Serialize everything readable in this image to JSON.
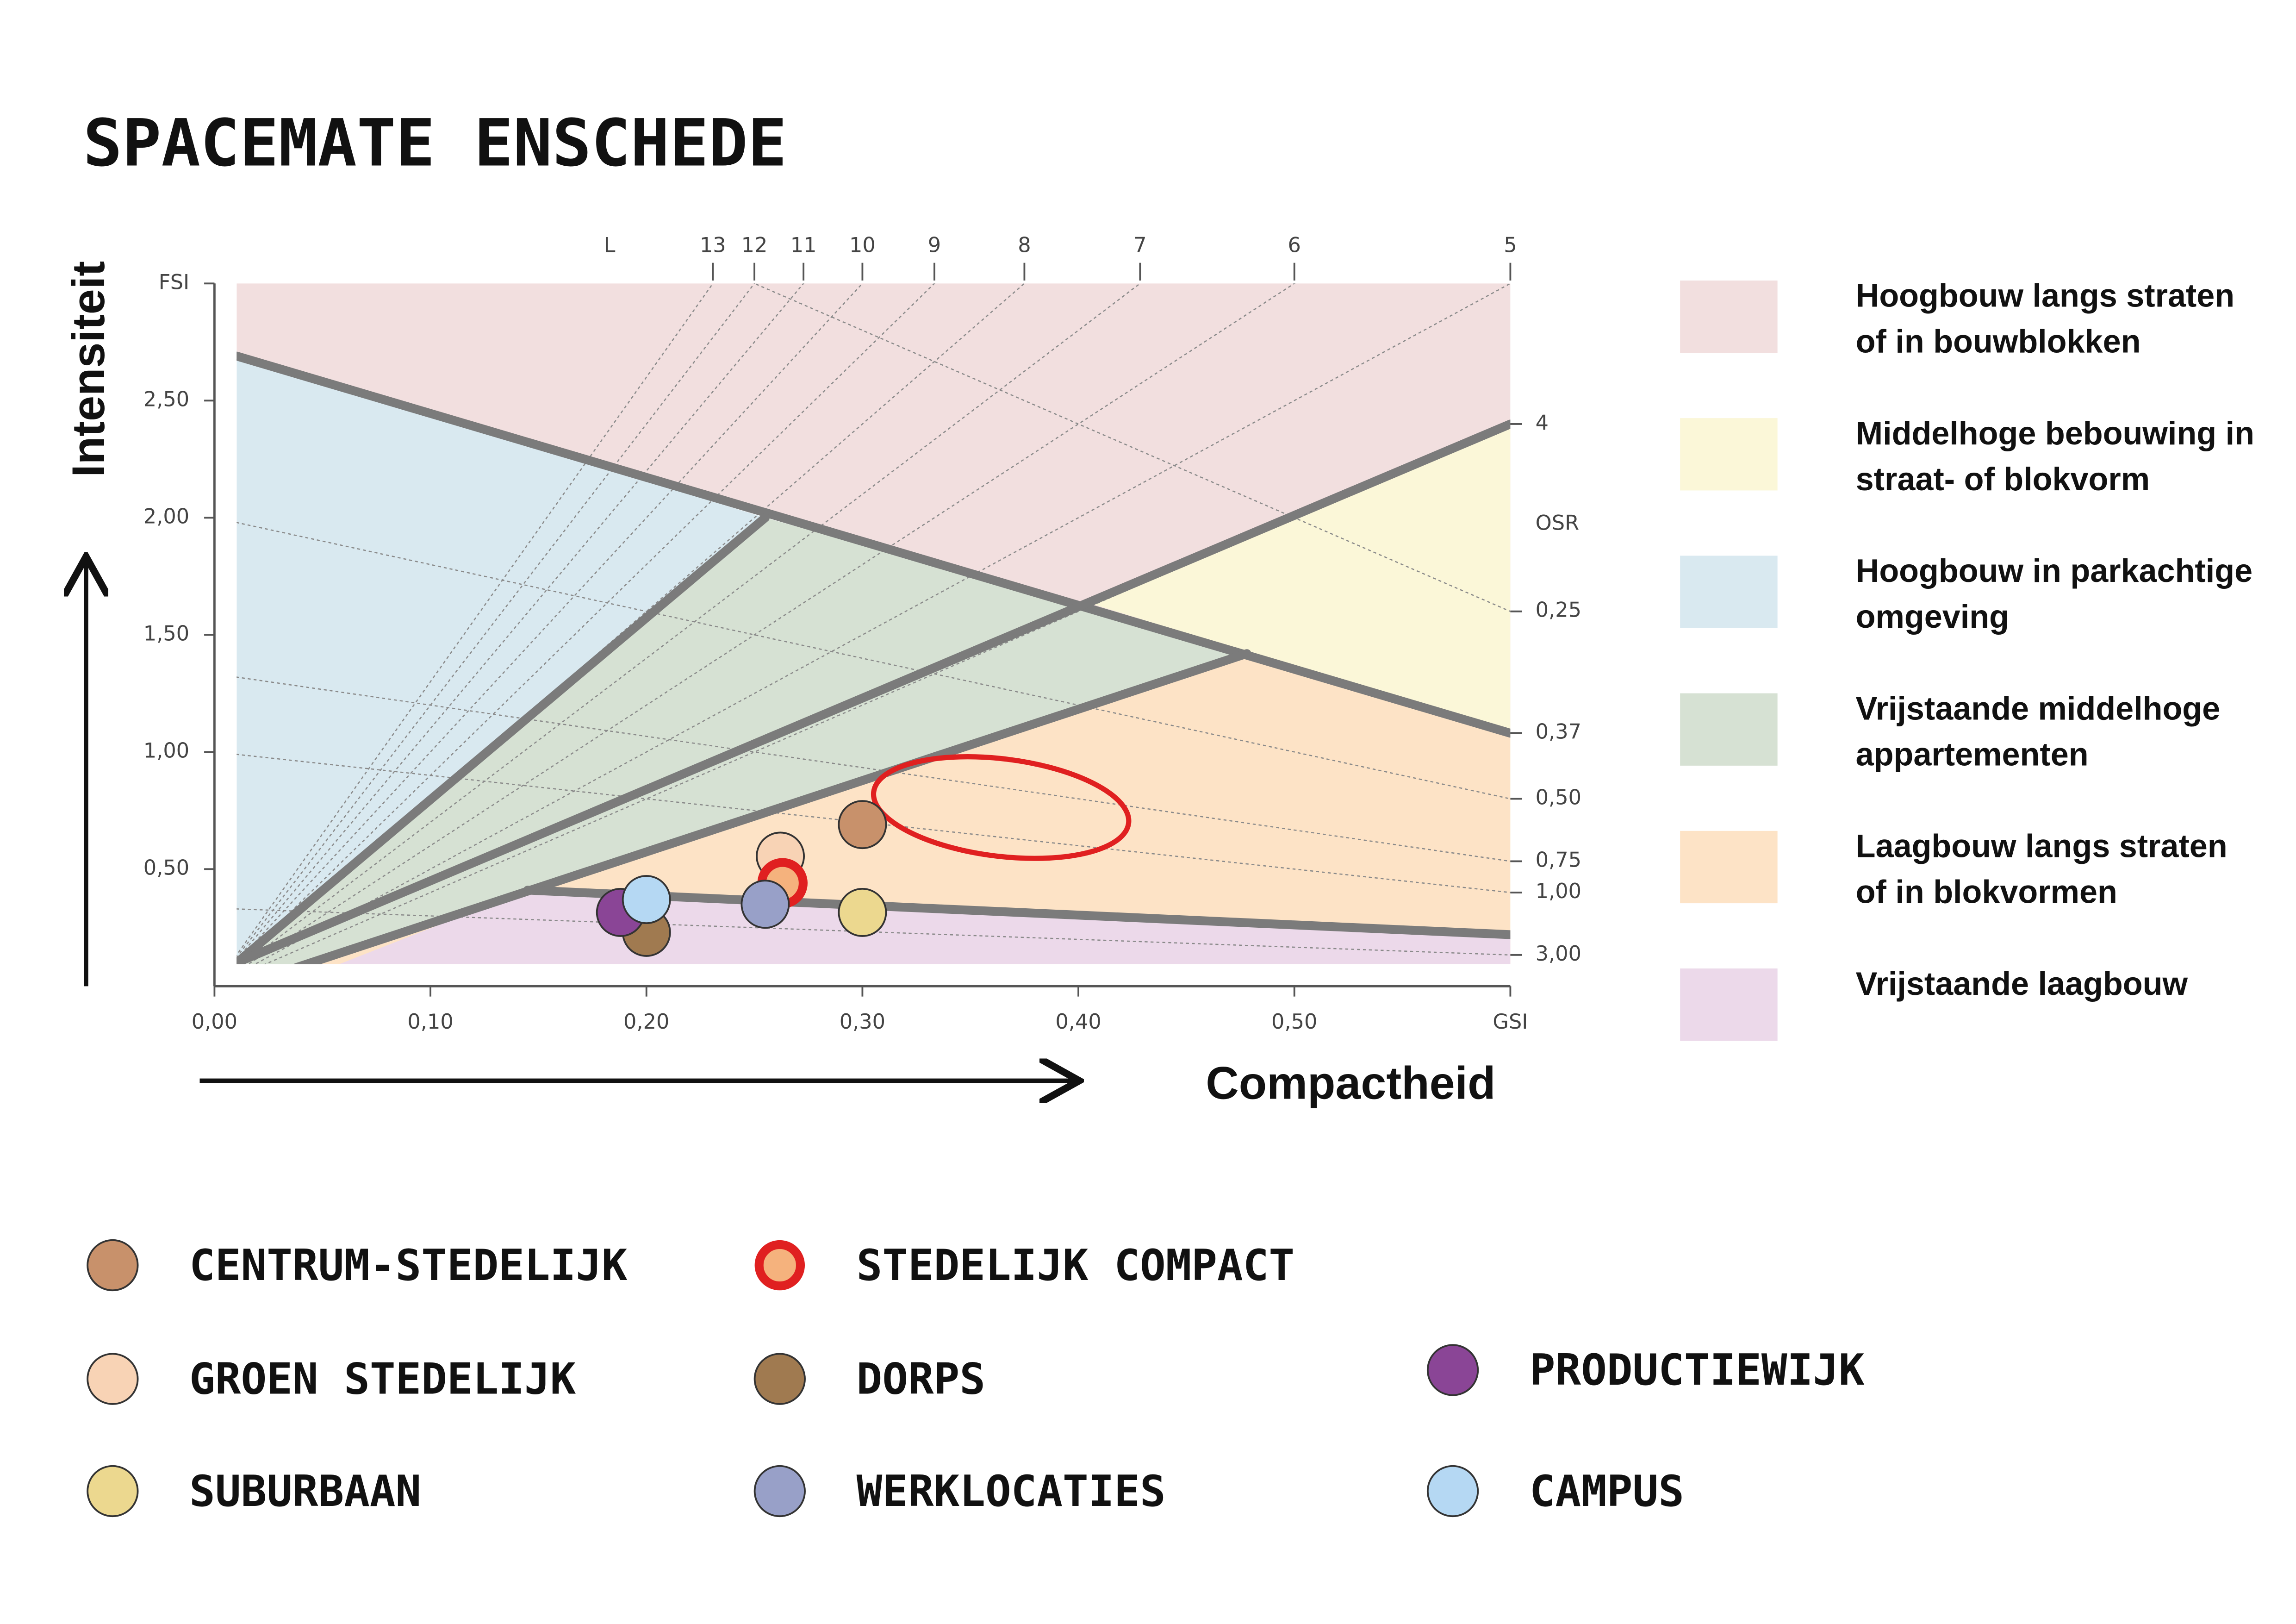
{
  "title": "SPACEMATE ENSCHEDE",
  "chart_data": {
    "type": "scatter",
    "y_label": "Intensiteit",
    "x_label": "Compactheid",
    "xlim": [
      0,
      0.6
    ],
    "ylim": [
      0,
      3
    ],
    "xticks": [
      {
        "value": 0,
        "label": "0,00"
      },
      {
        "value": 0.1,
        "label": "0,10"
      },
      {
        "value": 0.2,
        "label": "0,20"
      },
      {
        "value": 0.3,
        "label": "0,30"
      },
      {
        "value": 0.4,
        "label": "0,40"
      },
      {
        "value": 0.5,
        "label": "0,50"
      },
      {
        "value": 0.6,
        "label": "GSI"
      }
    ],
    "yticks": [
      {
        "value": 0.5,
        "label": "0,50"
      },
      {
        "value": 1,
        "label": "1,00"
      },
      {
        "value": 1.5,
        "label": "1,50"
      },
      {
        "value": 2,
        "label": "2,00"
      },
      {
        "value": 2.5,
        "label": "2,50"
      },
      {
        "value": 3,
        "label": "FSI"
      }
    ],
    "l_label": "L",
    "l_ticks": [
      13,
      12,
      11,
      10,
      9,
      8,
      7,
      6,
      5,
      4
    ],
    "osr_label": "OSR",
    "osr_ticks": [
      {
        "value": 0.25,
        "label": "0,25"
      },
      {
        "value": 0.37,
        "label": "0,37"
      },
      {
        "value": 0.5,
        "label": "0,50"
      },
      {
        "value": 0.75,
        "label": "0,75"
      },
      {
        "value": 1,
        "label": "1,00"
      },
      {
        "value": 3,
        "label": "3,00"
      }
    ],
    "zones": [
      {
        "name": [
          "Hoogbouw langs straten",
          "of in bouwblokken"
        ],
        "color": "#f2dfdf",
        "points": [
          [
            0.0103,
            3
          ],
          [
            0.6,
            3
          ],
          [
            0.6,
            1.08
          ],
          [
            0.0103,
            2.69
          ]
        ]
      },
      {
        "name": [
          "Middelhoge bebouwing in",
          "straat- of blokvorm"
        ],
        "color": "#fbf7d8",
        "points": [
          [
            0.407,
            1.63
          ],
          [
            0.6,
            2.4
          ],
          [
            0.6,
            1.08
          ]
        ]
      },
      {
        "name": [
          "Hoogbouw in parkachtige",
          "omgeving"
        ],
        "color": "#d9e9f0",
        "points": [
          [
            0.0103,
            2.69
          ],
          [
            0.255,
            2.0
          ],
          [
            0.0103,
            0.1
          ]
        ]
      },
      {
        "name": [
          "Vrijstaande middelhoge",
          "appartementen"
        ],
        "color": "#d6e1d3",
        "points": [
          [
            0.0103,
            0.1
          ],
          [
            0.255,
            2.0
          ],
          [
            0.478,
            1.42
          ],
          [
            0.038,
            0.08
          ]
        ]
      },
      {
        "name": [
          "Laagbouw langs straten",
          "of in blokvormen"
        ],
        "color": "#fde3c6",
        "points": [
          [
            0.038,
            0.08
          ],
          [
            0.478,
            1.42
          ],
          [
            0.6,
            1.08
          ],
          [
            0.6,
            0.095
          ],
          [
            0.038,
            0.095
          ]
        ]
      },
      {
        "name": [
          "Vrijstaande laagbouw"
        ],
        "color": "#ecd9ea",
        "points": [
          [
            0.145,
            0.41
          ],
          [
            0.6,
            0.22
          ],
          [
            0.6,
            0.095
          ],
          [
            0.058,
            0.095
          ]
        ]
      }
    ],
    "boundaries": [
      [
        [
          0.0103,
          2.69
        ],
        [
          0.6,
          1.08
        ]
      ],
      [
        [
          0.0103,
          0.1
        ],
        [
          0.255,
          2.0
        ]
      ],
      [
        [
          0.0103,
          0.1
        ],
        [
          0.6,
          2.4
        ]
      ],
      [
        [
          0.038,
          0.08
        ],
        [
          0.478,
          1.42
        ]
      ],
      [
        [
          0.145,
          0.41
        ],
        [
          0.6,
          0.22
        ]
      ]
    ],
    "series": [
      {
        "name": "CENTRUM-STEDELIJK",
        "color": "#c8916b",
        "x": [
          0.3
        ],
        "values": [
          0.69
        ]
      },
      {
        "name": "GROEN STEDELIJK",
        "color": "#f8d3b5",
        "x": [
          0.262
        ],
        "values": [
          0.555
        ]
      },
      {
        "name": "SUBURBAAN",
        "color": "#ecd88f",
        "x": [
          0.3
        ],
        "values": [
          0.315
        ]
      },
      {
        "name": "STEDELIJK COMPACT",
        "color": "#f5b27d",
        "edgecolor": "#e02020",
        "x": [
          0.263
        ],
        "values": [
          0.44
        ]
      },
      {
        "name": "DORPS",
        "color": "#a07a50",
        "x": [
          0.2
        ],
        "values": [
          0.23
        ]
      },
      {
        "name": "WERKLOCATIES",
        "color": "#98a0c8",
        "x": [
          0.255
        ],
        "values": [
          0.35
        ]
      },
      {
        "name": "PRODUCTIEWIJK",
        "color": "#8a4596",
        "x": [
          0.188
        ],
        "values": [
          0.315
        ]
      },
      {
        "name": "CAMPUS",
        "color": "#b5d8f3",
        "x": [
          0.2
        ],
        "values": [
          0.37
        ]
      }
    ]
  }
}
